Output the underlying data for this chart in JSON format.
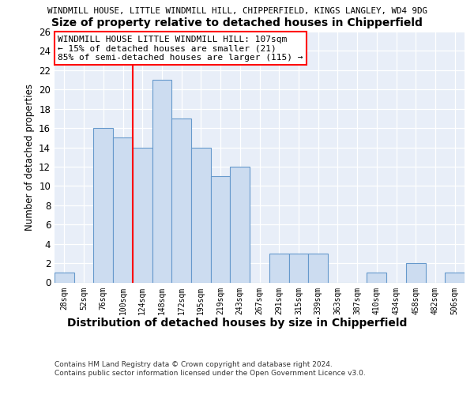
{
  "title_line1": "WINDMILL HOUSE, LITTLE WINDMILL HILL, CHIPPERFIELD, KINGS LANGLEY, WD4 9DG",
  "title_line2": "Size of property relative to detached houses in Chipperfield",
  "xlabel": "Distribution of detached houses by size in Chipperfield",
  "ylabel": "Number of detached properties",
  "categories": [
    "28sqm",
    "52sqm",
    "76sqm",
    "100sqm",
    "124sqm",
    "148sqm",
    "172sqm",
    "195sqm",
    "219sqm",
    "243sqm",
    "267sqm",
    "291sqm",
    "315sqm",
    "339sqm",
    "363sqm",
    "387sqm",
    "410sqm",
    "434sqm",
    "458sqm",
    "482sqm",
    "506sqm"
  ],
  "values": [
    1,
    0,
    16,
    15,
    14,
    21,
    17,
    14,
    11,
    12,
    0,
    3,
    3,
    3,
    0,
    0,
    1,
    0,
    2,
    0,
    1
  ],
  "bar_color": "#ccdcf0",
  "bar_edge_color": "#6699cc",
  "red_line_x": 3.5,
  "annotation_text": "WINDMILL HOUSE LITTLE WINDMILL HILL: 107sqm\n← 15% of detached houses are smaller (21)\n85% of semi-detached houses are larger (115) →",
  "ylim_max": 26,
  "yticks": [
    0,
    2,
    4,
    6,
    8,
    10,
    12,
    14,
    16,
    18,
    20,
    22,
    24,
    26
  ],
  "footnote": "Contains HM Land Registry data © Crown copyright and database right 2024.\nContains public sector information licensed under the Open Government Licence v3.0.",
  "bg_color": "#e8eef8",
  "grid_color": "#ffffff"
}
